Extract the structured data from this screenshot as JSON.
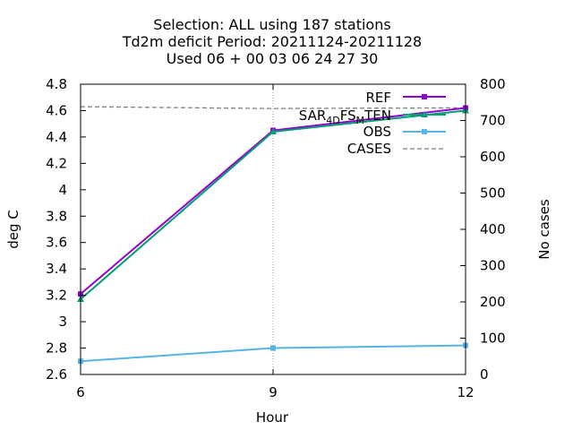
{
  "chart_data": {
    "type": "line",
    "title_lines": [
      "Selection: ALL using   187 stations",
      "Td2m deficit   Period: 20211124-20211128",
      "Used  06 + 00 03 06 24 27 30"
    ],
    "xlabel": "Hour",
    "ylabel": "deg C",
    "y2label": "No cases",
    "x": [
      6,
      9,
      12
    ],
    "x_ticks": [
      "6",
      "9",
      "12"
    ],
    "xlim": [
      6,
      12
    ],
    "ylim": [
      2.6,
      4.8
    ],
    "y_ticks": [
      "2.6",
      "2.8",
      "3",
      "3.2",
      "3.4",
      "3.6",
      "3.8",
      "4",
      "4.2",
      "4.4",
      "4.6",
      "4.8"
    ],
    "y2lim": [
      0,
      800
    ],
    "y2_ticks": [
      "0",
      "100",
      "200",
      "300",
      "400",
      "500",
      "600",
      "700",
      "800"
    ],
    "grid": "x-only-dotted",
    "legend_position": "top-right",
    "series": [
      {
        "name": "REF",
        "axis": "y1",
        "values": [
          3.21,
          4.45,
          4.62
        ],
        "color": "#9400d3",
        "marker": "plus-square"
      },
      {
        "name_parts": [
          "SAR",
          "4",
          "D",
          "FS",
          "M",
          "TEN"
        ],
        "axis": "y1",
        "values": [
          3.17,
          4.44,
          4.6
        ],
        "color": "#009e73",
        "marker": "triangle"
      },
      {
        "name": "OBS",
        "axis": "y1",
        "values": [
          2.7,
          2.8,
          2.82
        ],
        "color": "#56b4e9",
        "marker": "plus-square"
      },
      {
        "name": "CASES",
        "axis": "y2",
        "values": [
          738,
          733,
          735
        ],
        "color": "#808080",
        "dashed": true
      }
    ]
  }
}
